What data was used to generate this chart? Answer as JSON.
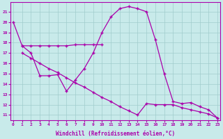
{
  "xlabel": "Windchill (Refroidissement éolien,°C)",
  "curve1_x": [
    0,
    1,
    2,
    3,
    4,
    5,
    6,
    7,
    8,
    9,
    10,
    11,
    12,
    13,
    14,
    15,
    16,
    17,
    18,
    19,
    20,
    21,
    22,
    23
  ],
  "curve1_y": [
    20.0,
    17.7,
    17.0,
    14.8,
    14.8,
    14.9,
    13.3,
    14.4,
    15.5,
    17.0,
    19.0,
    20.5,
    21.3,
    21.5,
    21.3,
    21.0,
    18.3,
    15.0,
    12.3,
    12.1,
    12.2,
    11.8,
    11.5,
    10.7
  ],
  "curve2_x": [
    1,
    2,
    3,
    4,
    5,
    6,
    7,
    8,
    9,
    10
  ],
  "curve2_y": [
    17.7,
    17.7,
    17.7,
    17.7,
    17.7,
    17.7,
    17.8,
    17.8,
    17.8,
    17.8
  ],
  "curve3_x": [
    1,
    2,
    3,
    4,
    5,
    6,
    7,
    8,
    9,
    10,
    11,
    12,
    13,
    14,
    15,
    16,
    17,
    18,
    19,
    20,
    21,
    22,
    23
  ],
  "curve3_y": [
    17.0,
    16.5,
    16.0,
    15.5,
    15.1,
    14.6,
    14.1,
    13.7,
    13.2,
    12.7,
    12.3,
    11.8,
    11.4,
    11.0,
    12.1,
    12.0,
    12.0,
    12.0,
    11.7,
    11.5,
    11.3,
    11.1,
    10.7
  ],
  "ylim": [
    10.5,
    21.9
  ],
  "yticks": [
    11,
    12,
    13,
    14,
    15,
    16,
    17,
    18,
    19,
    20,
    21
  ],
  "xlim": [
    -0.3,
    23.3
  ],
  "bg_color": "#c8eaea",
  "grid_color": "#a0cccc",
  "line_color": "#aa00aa",
  "line_width": 0.9,
  "marker": "+",
  "marker_size": 3.5,
  "tick_fontsize": 4.5,
  "xlabel_fontsize": 5.5
}
